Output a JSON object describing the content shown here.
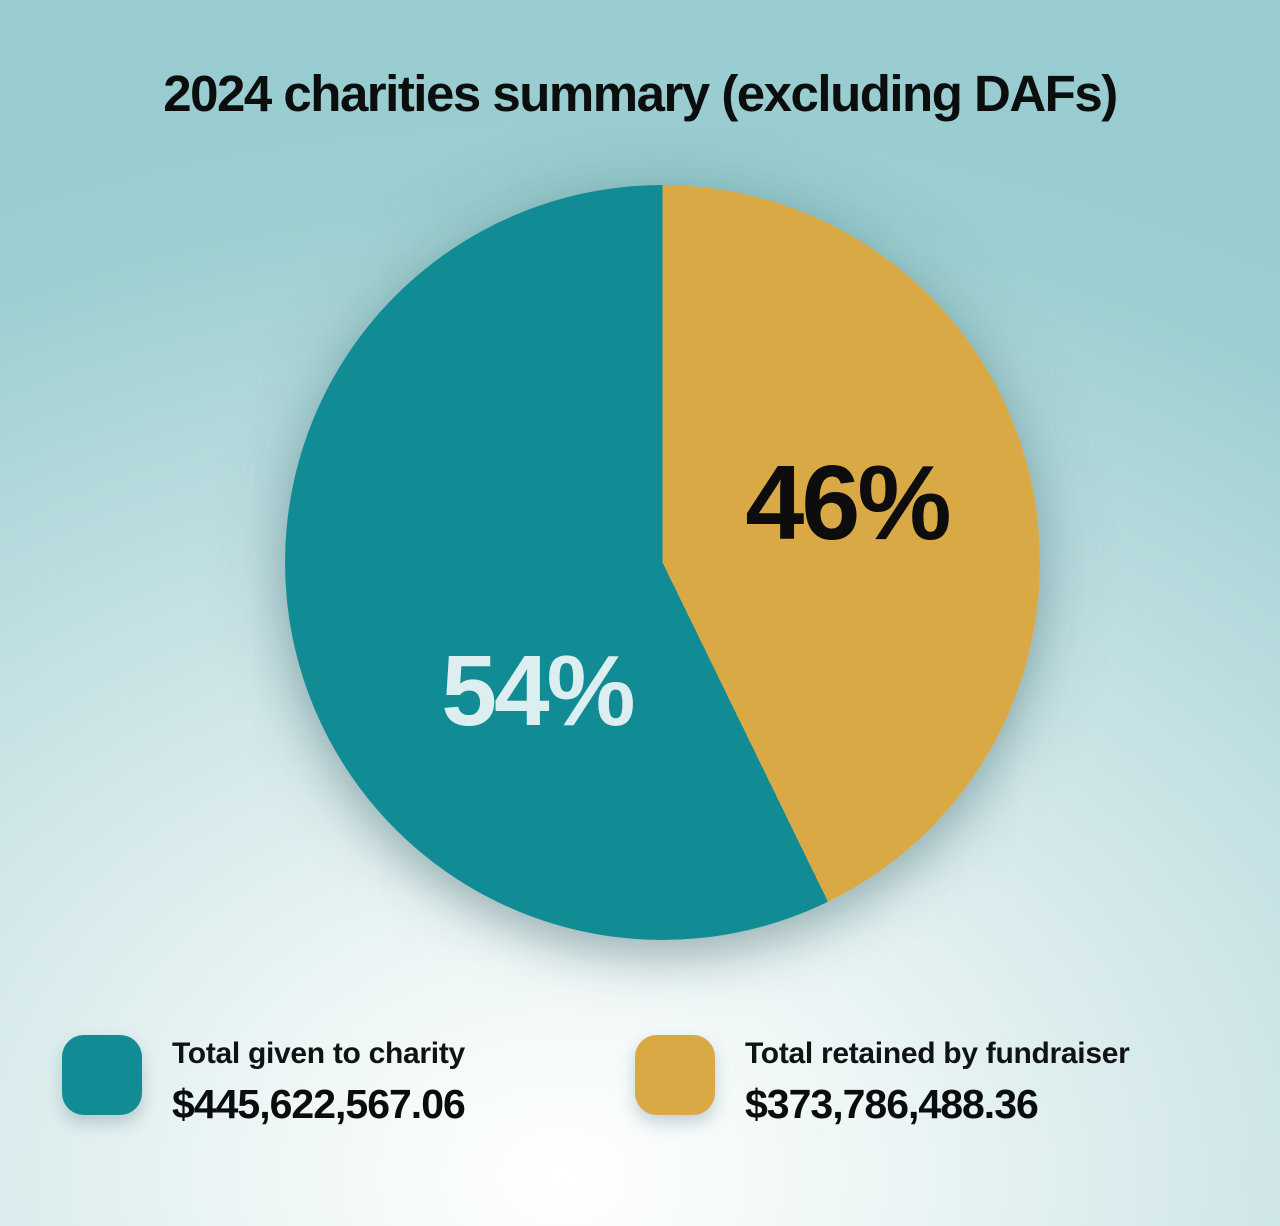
{
  "title": "2024 charities summary (excluding DAFs)",
  "colors": {
    "teal": "#118c94",
    "gold": "#d9a945",
    "background_top": "#9bced1",
    "background_highlight": "#ffffff",
    "title_text": "#0c0d0d"
  },
  "chart_data": {
    "type": "pie",
    "title": "2024 charities summary (excluding DAFs)",
    "legend_position": "bottom",
    "start_angle_deg": 0,
    "gold_end_angle_deg": 154,
    "slices": [
      {
        "label": "Total given to charity",
        "percent": 54,
        "percent_label": "54%",
        "amount": "$445,622,567.06",
        "amount_value": 445622567.06,
        "color": "#118c94",
        "percent_text_color": "#ddeef0"
      },
      {
        "label": "Total retained by fundraiser",
        "percent": 46,
        "percent_label": "46%",
        "amount": "$373,786,488.36",
        "amount_value": 373786488.36,
        "color": "#d9a945",
        "percent_text_color": "#0d0d0d"
      }
    ]
  }
}
